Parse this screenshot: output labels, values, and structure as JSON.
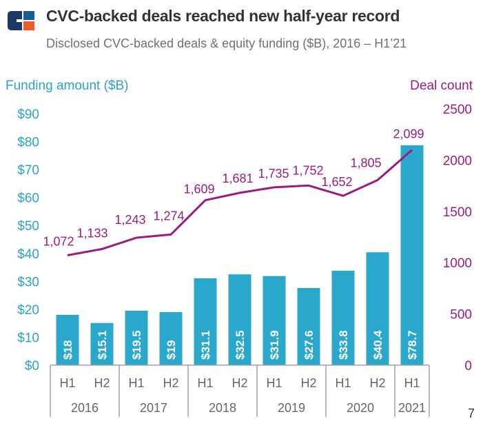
{
  "header": {
    "title": "CVC-backed deals reached new half-year record",
    "subtitle": "Disclosed CVC-backed deals & equity funding ($B), 2016 – H1’21",
    "logo_colors": {
      "navy": "#1b3a66",
      "blue": "#155e96",
      "orange": "#f15a29"
    }
  },
  "page_number": "7",
  "colors": {
    "bar": "#2aa8cc",
    "line": "#9c1b80",
    "left_axis_text": "#2aa3c9",
    "right_axis_text": "#9c1b80",
    "category_text": "#666666",
    "axis_line": "#a0a0a0"
  },
  "chart_data": {
    "type": "bar+line",
    "title": "CVC-backed deals reached new half-year record",
    "subtitle": "Disclosed CVC-backed deals & equity funding ($B), 2016 – H1’21",
    "categories": [
      "H1",
      "H2",
      "H1",
      "H2",
      "H1",
      "H2",
      "H1",
      "H2",
      "H1",
      "H2",
      "H1"
    ],
    "groups": [
      {
        "label": "2016",
        "span": 2
      },
      {
        "label": "2017",
        "span": 2
      },
      {
        "label": "2018",
        "span": 2
      },
      {
        "label": "2019",
        "span": 2
      },
      {
        "label": "2020",
        "span": 2
      },
      {
        "label": "2021",
        "span": 1
      }
    ],
    "series": [
      {
        "name": "Funding amount ($B)",
        "type": "bar",
        "axis": "left",
        "values": [
          18,
          15.1,
          19.5,
          19,
          31.1,
          32.5,
          31.9,
          27.6,
          33.8,
          40.4,
          78.7
        ],
        "labels": [
          "$18",
          "$15.1",
          "$19.5",
          "$19",
          "$31.1",
          "$32.5",
          "$31.9",
          "$27.6",
          "$33.8",
          "$40.4",
          "$78.7"
        ]
      },
      {
        "name": "Deal count",
        "type": "line",
        "axis": "right",
        "values": [
          1072,
          1133,
          1243,
          1274,
          1609,
          1681,
          1735,
          1752,
          1652,
          1805,
          2099
        ],
        "labels": [
          "1,072",
          "1,133",
          "1,243",
          "1,274",
          "1,609",
          "1,681",
          "1,735",
          "1,752",
          "1,652",
          "1,805",
          "2,099"
        ]
      }
    ],
    "left_axis": {
      "label": "Funding amount ($B)",
      "ylim": [
        0,
        90
      ],
      "ticks": [
        0,
        10,
        20,
        30,
        40,
        50,
        60,
        70,
        80,
        90
      ],
      "tick_labels": [
        "$0",
        "$10",
        "$20",
        "$30",
        "$40",
        "$50",
        "$60",
        "$70",
        "$80",
        "$90"
      ]
    },
    "right_axis": {
      "label": "Deal count",
      "ylim": [
        0,
        2500
      ],
      "ticks": [
        0,
        500,
        1000,
        1500,
        2000,
        2500
      ],
      "tick_labels": [
        "0",
        "500",
        "1000",
        "1500",
        "2000",
        "2500"
      ]
    },
    "grid": false,
    "legend": "none"
  }
}
